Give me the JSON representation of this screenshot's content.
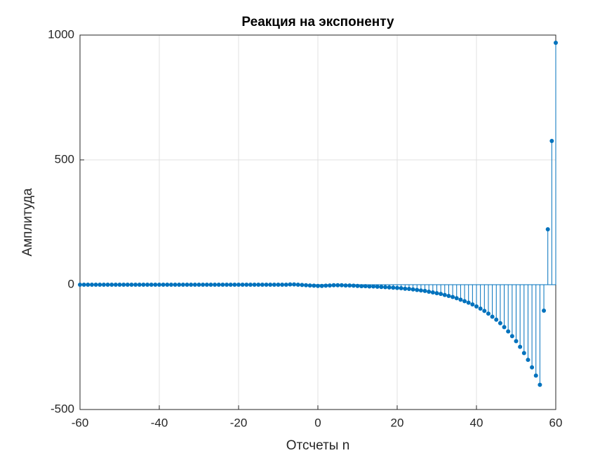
{
  "chart_data": {
    "type": "stem",
    "title": "Реакция на экспоненту",
    "xlabel": "Отсчеты n",
    "ylabel": "Амплитуда",
    "x": [
      -60,
      -59,
      -58,
      -57,
      -56,
      -55,
      -54,
      -53,
      -52,
      -51,
      -50,
      -49,
      -48,
      -47,
      -46,
      -45,
      -44,
      -43,
      -42,
      -41,
      -40,
      -39,
      -38,
      -37,
      -36,
      -35,
      -34,
      -33,
      -32,
      -31,
      -30,
      -29,
      -28,
      -27,
      -26,
      -25,
      -24,
      -23,
      -22,
      -21,
      -20,
      -19,
      -18,
      -17,
      -16,
      -15,
      -14,
      -13,
      -12,
      -11,
      -10,
      -9,
      -8,
      -7,
      -6,
      -5,
      -4,
      -3,
      -2,
      -1,
      0,
      1,
      2,
      3,
      4,
      5,
      6,
      7,
      8,
      9,
      10,
      11,
      12,
      13,
      14,
      15,
      16,
      17,
      18,
      19,
      20,
      21,
      22,
      23,
      24,
      25,
      26,
      27,
      28,
      29,
      30,
      31,
      32,
      33,
      34,
      35,
      36,
      37,
      38,
      39,
      40,
      41,
      42,
      43,
      44,
      45,
      46,
      47,
      48,
      49,
      50,
      51,
      52,
      53,
      54,
      55,
      56,
      57,
      58,
      59,
      60
    ],
    "values": [
      0,
      0,
      0,
      0,
      0,
      0,
      0,
      0,
      0,
      0,
      0,
      0,
      0,
      0,
      0,
      0,
      0,
      0,
      0,
      0,
      0,
      0,
      0,
      0,
      0,
      0,
      0,
      0,
      0,
      0,
      0,
      0,
      0,
      0,
      0,
      0,
      0,
      0,
      0,
      0,
      0,
      0,
      0,
      0,
      0,
      0,
      0,
      0,
      0,
      0,
      0,
      0,
      0,
      1,
      1,
      0,
      -1,
      -2,
      -3,
      -4,
      -5,
      -5,
      -4,
      -3,
      -2,
      -2,
      -2,
      -3,
      -3,
      -4,
      -5,
      -6,
      -6,
      -7,
      -7,
      -8,
      -9,
      -10,
      -11,
      -12,
      -13,
      -14,
      -16,
      -17,
      -19,
      -21,
      -23,
      -25,
      -28,
      -31,
      -34,
      -37,
      -41,
      -45,
      -49,
      -54,
      -60,
      -66,
      -72,
      -79,
      -87,
      -96,
      -105,
      -116,
      -128,
      -140,
      -154,
      -170,
      -187,
      -206,
      -226,
      -249,
      -274,
      -301,
      -331,
      -364,
      -401,
      -104,
      222,
      576,
      969
    ],
    "color": "#0072bd",
    "xlim": [
      -60,
      60
    ],
    "xticks": [
      -60,
      -40,
      -20,
      0,
      20,
      40,
      60
    ],
    "ylim": [
      -500,
      1000
    ],
    "yticks": [
      -500,
      0,
      500,
      1000
    ],
    "grid": true
  }
}
